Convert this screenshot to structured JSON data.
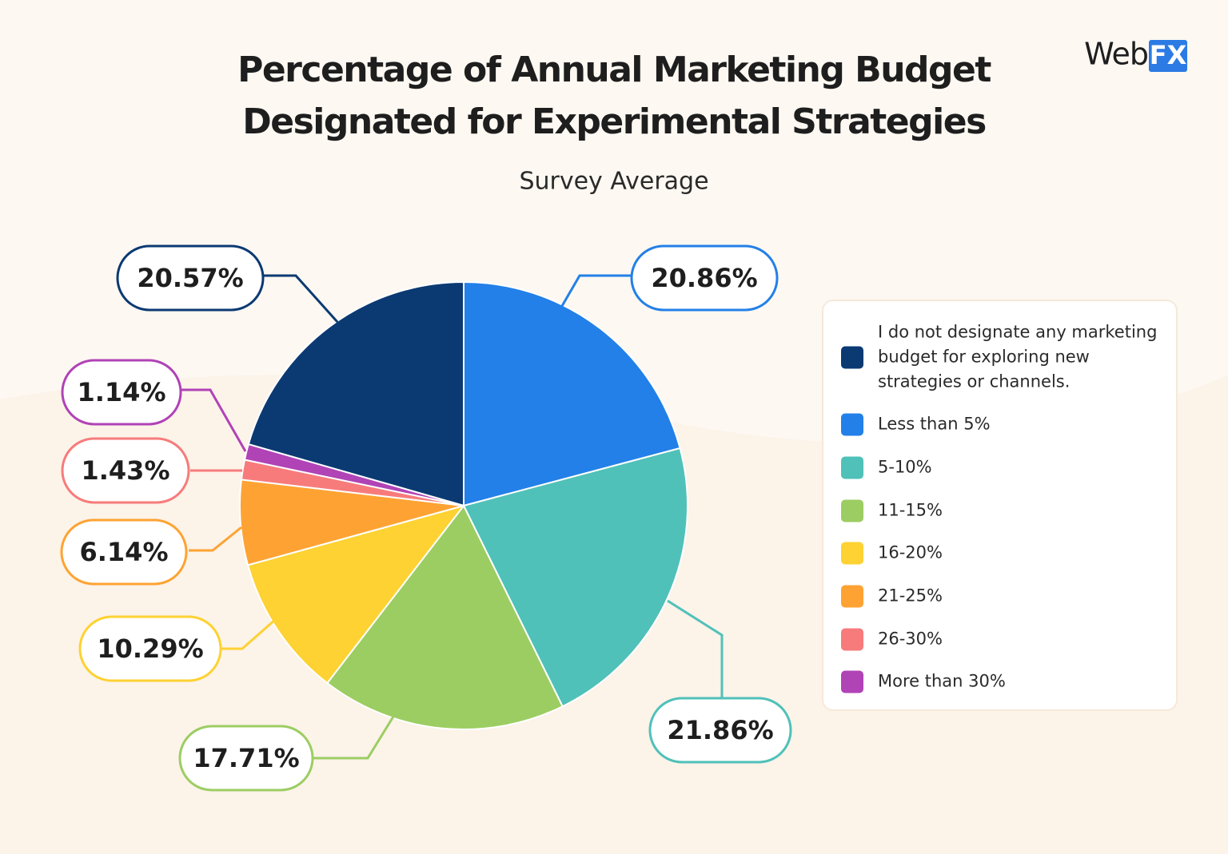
{
  "logo": [
    "Web",
    "FX"
  ],
  "chart_data": {
    "type": "pie",
    "title": [
      "Percentage of Annual Marketing Budget",
      "Designated for Experimental Strategies"
    ],
    "subtitle": "Survey Average",
    "categories": [
      "I do not designate any marketing budget for exploring new strategies or channels.",
      "Less than 5%",
      "5-10%",
      "11-15%",
      "16-20%",
      "21-25%",
      "26-30%",
      "More than 30%"
    ],
    "values": [
      20.57,
      20.86,
      21.86,
      17.71,
      10.29,
      6.14,
      1.43,
      1.14
    ],
    "value_labels": [
      "20.57%",
      "20.86%",
      "21.86%",
      "17.71%",
      "10.29%",
      "6.14%",
      "1.43%",
      "1.14%"
    ],
    "colors": [
      "#0b3a73",
      "#2380e8",
      "#4fc1b9",
      "#9ccd62",
      "#fdd232",
      "#fea333",
      "#f77b7b",
      "#b043b6"
    ],
    "legend": "right"
  }
}
